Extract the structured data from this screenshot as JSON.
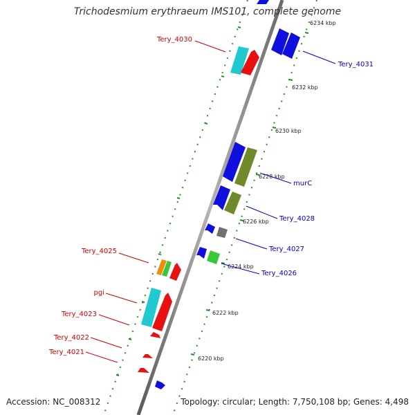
{
  "map": {
    "title": "Trichodesmium erythraeum IMS101, complete genome",
    "accession_text": "Accession: NC_008312",
    "info_text": "Topology: circular; Length: 7,750,108 bp; Genes: 4,498",
    "colors": {
      "backbone": "#888888",
      "tick_dots": "#2a8a2a",
      "label_top_strand": "#cc0000",
      "label_bottom_strand": "#0000cc"
    },
    "ticks": [
      {
        "label": "6234 kbp",
        "kbp": 6234
      },
      {
        "label": "6232 kbp",
        "kbp": 6232
      },
      {
        "label": "6230 kbp",
        "kbp": 6230
      },
      {
        "label": "6228 kbp",
        "kbp": 6228
      },
      {
        "label": "6226 kbp",
        "kbp": 6226
      },
      {
        "label": "6224 kbp",
        "kbp": 6224
      },
      {
        "label": "6222 kbp",
        "kbp": 6222
      },
      {
        "label": "6220 kbp",
        "kbp": 6220
      }
    ],
    "labels": [
      {
        "text": "Tery_4030",
        "strand": "top"
      },
      {
        "text": "Tery_4031",
        "strand": "bottom"
      },
      {
        "text": "murC",
        "strand": "bottom"
      },
      {
        "text": "Tery_4028",
        "strand": "bottom"
      },
      {
        "text": "Tery_4027",
        "strand": "bottom"
      },
      {
        "text": "Tery_4025",
        "strand": "top"
      },
      {
        "text": "Tery_4026",
        "strand": "bottom"
      },
      {
        "text": "pgi",
        "strand": "top"
      },
      {
        "text": "Tery_4023",
        "strand": "top"
      },
      {
        "text": "Tery_4022",
        "strand": "top"
      },
      {
        "text": "Tery_4021",
        "strand": "top"
      }
    ],
    "features": [
      {
        "name": "feature-blue-top",
        "color": "#1010dd"
      },
      {
        "name": "feature-tery-4031-a",
        "color": "#1010dd"
      },
      {
        "name": "feature-tery-4031-b",
        "color": "#1010dd"
      },
      {
        "name": "feature-tery-4030-cyan",
        "color": "#20c8d0"
      },
      {
        "name": "feature-tery-4030-red",
        "color": "#e81010"
      },
      {
        "name": "feature-murc-blue",
        "color": "#1010dd"
      },
      {
        "name": "feature-murc-olive",
        "color": "#6f8a28"
      },
      {
        "name": "feature-tery-4028-blue",
        "color": "#1010dd"
      },
      {
        "name": "feature-tery-4028-olive",
        "color": "#6f8a28"
      },
      {
        "name": "feature-tery-4027-blue",
        "color": "#1010dd"
      },
      {
        "name": "feature-tery-4027-gray",
        "color": "#707070"
      },
      {
        "name": "feature-tery-4026-blue",
        "color": "#1010dd"
      },
      {
        "name": "feature-tery-4026-green",
        "color": "#38c838"
      },
      {
        "name": "feature-tery-4025-orange",
        "color": "#ee8c10"
      },
      {
        "name": "feature-tery-4025-green",
        "color": "#38c838"
      },
      {
        "name": "feature-tery-4025-red",
        "color": "#e81010"
      },
      {
        "name": "feature-pgi-cyan",
        "color": "#20c8d0"
      },
      {
        "name": "feature-tery-4023-red",
        "color": "#e81010"
      },
      {
        "name": "feature-tery-4022-red",
        "color": "#e81010"
      },
      {
        "name": "feature-tery-4021-red-a",
        "color": "#e81010"
      },
      {
        "name": "feature-tery-4021-red-b",
        "color": "#e81010"
      },
      {
        "name": "feature-blue-bottom",
        "color": "#1010dd"
      }
    ]
  }
}
